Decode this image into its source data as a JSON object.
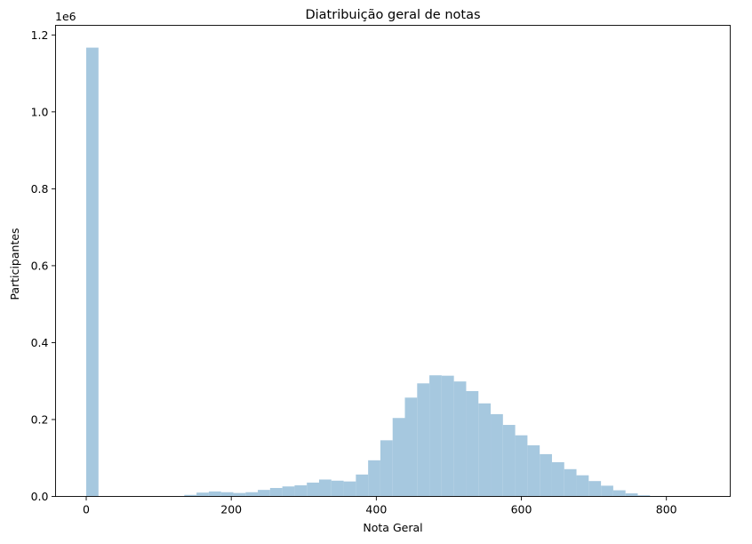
{
  "chart_data": {
    "type": "bar",
    "title": "Diatribuição geral de notas",
    "xlabel": "Nota Geral",
    "ylabel": "Participantes",
    "y_offset_label": "1e6",
    "bar_color": "#a6c8df",
    "bin_width": 16.9,
    "xlim": [
      -42.3,
      888.0
    ],
    "ylim": [
      0,
      1.225
    ],
    "x_ticks": [
      0,
      200,
      400,
      600,
      800
    ],
    "x_tick_labels": [
      "0",
      "200",
      "400",
      "600",
      "800"
    ],
    "y_ticks": [
      0.0,
      0.2,
      0.4,
      0.6,
      0.8,
      1.0,
      1.2
    ],
    "y_tick_labels": [
      "0.0",
      "0.2",
      "0.4",
      "0.6",
      "0.8",
      "1.0",
      "1.2"
    ],
    "bin_starts": [
      0,
      16.9,
      33.8,
      50.7,
      67.6,
      84.5,
      101.4,
      118.3,
      135.2,
      152.1,
      169.0,
      185.9,
      202.8,
      219.7,
      236.6,
      253.5,
      270.4,
      287.3,
      304.2,
      321.1,
      338.0,
      354.9,
      371.8,
      388.7,
      405.6,
      422.5,
      439.4,
      456.3,
      473.2,
      490.1,
      507.0,
      523.9,
      540.8,
      557.7,
      574.6,
      591.5,
      608.4,
      625.3,
      642.2,
      659.1,
      676.0,
      692.9,
      709.8,
      726.7,
      743.6,
      760.5,
      777.4,
      794.3,
      811.2,
      828.1
    ],
    "values": [
      1.167,
      0,
      0,
      0,
      0,
      0,
      0,
      0,
      0.004,
      0.01,
      0.013,
      0.011,
      0.009,
      0.011,
      0.017,
      0.022,
      0.026,
      0.029,
      0.036,
      0.044,
      0.041,
      0.039,
      0.057,
      0.094,
      0.146,
      0.204,
      0.257,
      0.294,
      0.315,
      0.314,
      0.299,
      0.274,
      0.242,
      0.214,
      0.186,
      0.159,
      0.133,
      0.11,
      0.089,
      0.071,
      0.055,
      0.04,
      0.028,
      0.016,
      0.008,
      0.003,
      0.001,
      0,
      0,
      0
    ]
  }
}
